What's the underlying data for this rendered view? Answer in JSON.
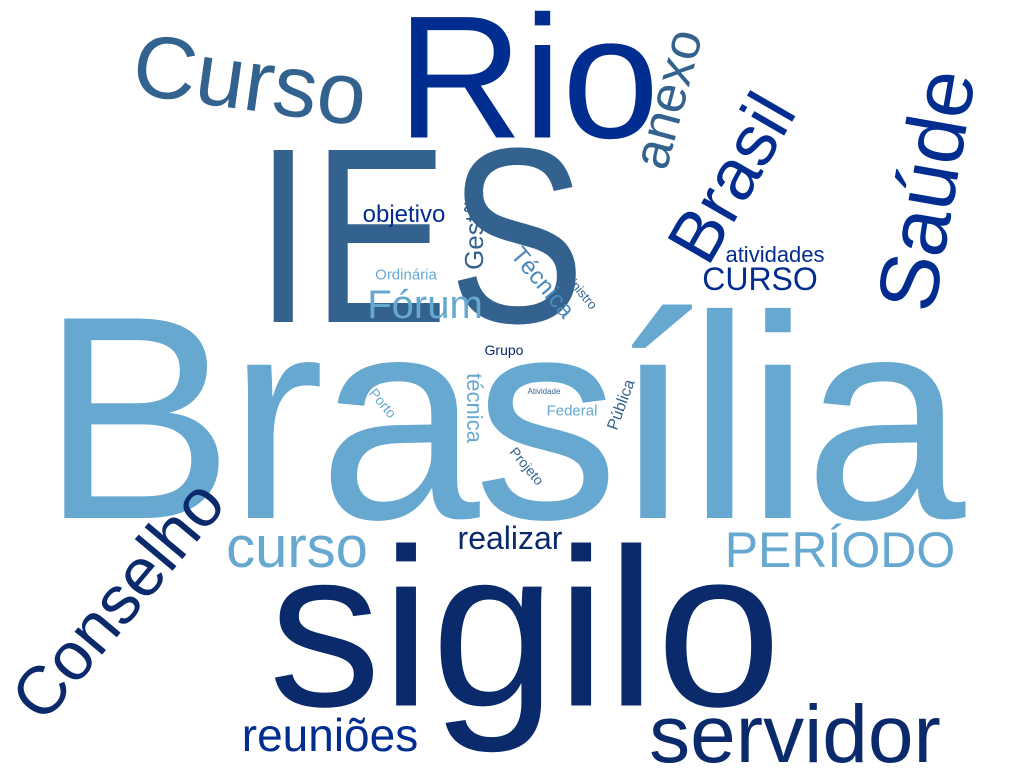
{
  "words": {
    "brasilia": "Brasília",
    "ies": "IES",
    "sigilo": "sigilo",
    "rio": "Rio",
    "servidor": "servidor",
    "curso_top": "Curso",
    "saude": "Saúde",
    "brasil": "Brasil",
    "conselho": "Conselho",
    "curso_lower": "curso",
    "periodo": "PERÍODO",
    "anexo": "anexo",
    "reunioes": "reuniões",
    "forum": "Fórum",
    "realizar": "realizar",
    "curso_caps": "CURSO",
    "atividades": "atividades",
    "objetivo": "objetivo",
    "gestao": "Gestão",
    "tecnica_cap": "Técnica",
    "tecnica_lower": "técnica",
    "ordinaria": "Ordinária",
    "ministro": "Ministro",
    "grupo": "Grupo",
    "publica": "Pública",
    "porto": "Porto",
    "federal": "Federal",
    "projeto": "Projeto",
    "atividade": "Atividade"
  },
  "colors": {
    "dark_navy": "#0a2a6b",
    "royal_navy": "#002d8f",
    "steel_blue": "#34628e",
    "light_blue": "#66a8cf"
  }
}
